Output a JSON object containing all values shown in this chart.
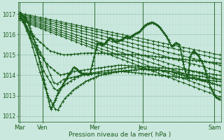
{
  "bg_color": "#cbe8df",
  "line_color": "#1a5c1a",
  "grid_color_minor": "#b8ddd0",
  "grid_color_major": "#a0ccbb",
  "ylabel_ticks": [
    1012,
    1013,
    1014,
    1015,
    1016,
    1017
  ],
  "xlabel": "Pression niveau de la mer( hPa )",
  "xtick_labels": [
    "Mar",
    "Ven",
    "Mer",
    "Jeu",
    "Sam"
  ],
  "xtick_positions": [
    0.0,
    0.115,
    0.375,
    0.615,
    0.975
  ],
  "ylim": [
    1011.7,
    1017.6
  ],
  "xlim": [
    -0.01,
    1.01
  ]
}
